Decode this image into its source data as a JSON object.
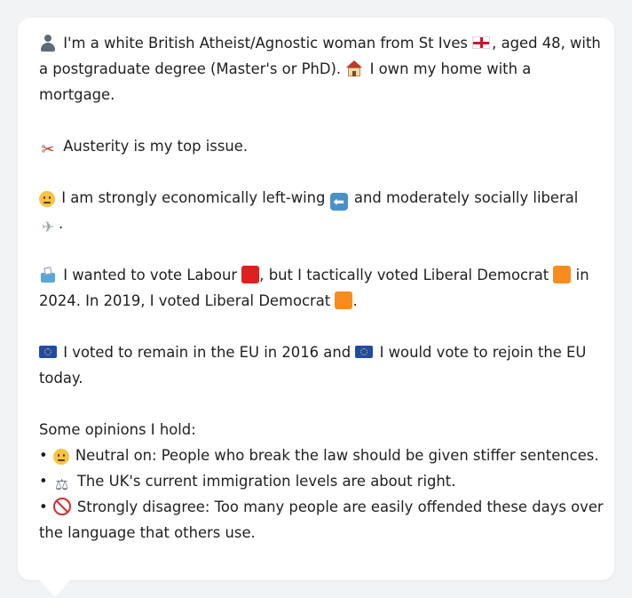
{
  "profile": {
    "identity": {
      "icon": "person-icon",
      "line1_prefix": "I'm a white British Atheist/Agnostic woman from St Ives",
      "flag_icon": "england-flag-icon",
      "line1_suffix": ", aged 48, with",
      "line2_prefix": "a postgraduate degree (Master's or PhD).",
      "house_icon": "house-icon",
      "line2_suffix": "I own my home with a",
      "line3": "mortgage."
    },
    "top_issue": {
      "icon": "scissors-icon",
      "text": "Austerity is my top issue."
    },
    "ideology": {
      "icon": "thinking-face-icon",
      "line1_prefix": "I am strongly economically left-wing",
      "arrow_icon": "left-arrow-icon",
      "line1_suffix": "and moderately socially liberal",
      "dove_icon": "dove-icon",
      "line2": "."
    },
    "vote": {
      "icon": "ballot-box-icon",
      "line1_a": "I wanted to vote Labour",
      "labour_color": "#e02020",
      "line1_b": ", but I tactically voted Liberal Democrat",
      "libdem_color": "#f78c1e",
      "line1_c": "in",
      "line2_a": "2024. In 2019, I voted Liberal Democrat",
      "line2_b": "."
    },
    "eu": {
      "icon": "eu-flag-icon",
      "line1_a": "I voted to remain in the EU in 2016 and",
      "line1_b": "I would vote to rejoin the EU",
      "line2": "today."
    },
    "opinions": {
      "heading": "Some opinions I hold:",
      "bullet": "•",
      "items": [
        {
          "icon": "neutral-face-icon",
          "text": "Neutral on: People who break the law should be given stiffer sentences."
        },
        {
          "icon": "scales-icon",
          "text": "The UK's current immigration levels are about right."
        },
        {
          "icon": "prohibited-icon",
          "text_line1": "Strongly disagree: Too many people are easily offended these days over",
          "text_line2": "the language that others use."
        }
      ]
    }
  }
}
